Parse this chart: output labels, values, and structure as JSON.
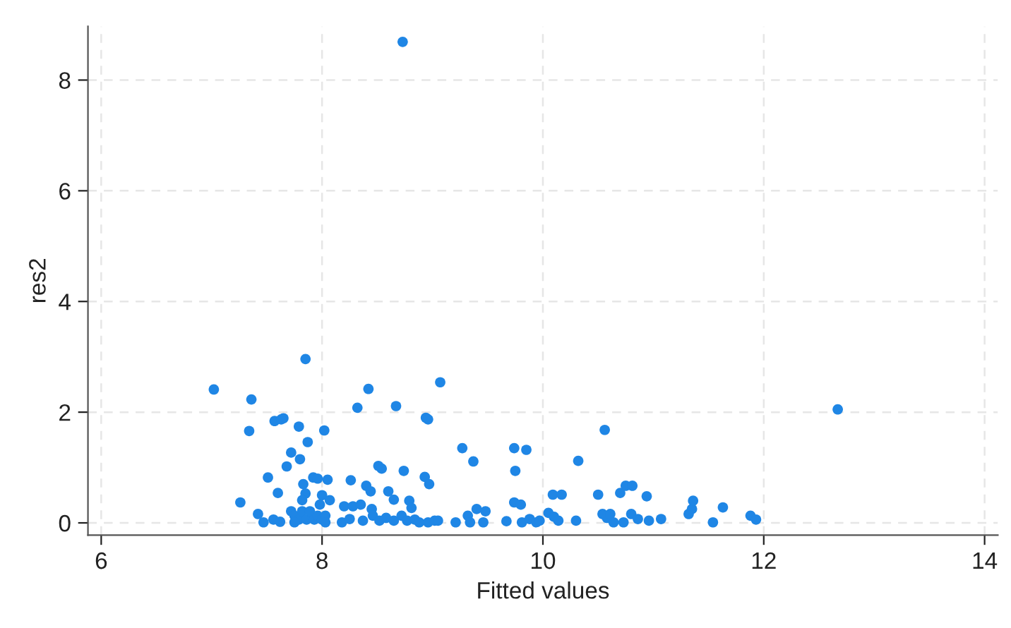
{
  "chart_data": {
    "type": "scatter",
    "xlabel": "Fitted values",
    "ylabel": "res2",
    "color": "#1f86e5",
    "marker": "circle",
    "grid": true,
    "xlim": [
      5.88,
      14.12
    ],
    "ylim": [
      -0.22,
      8.97
    ],
    "xticks": [
      6,
      8,
      10,
      12,
      14
    ],
    "yticks": [
      0,
      2,
      4,
      6,
      8
    ],
    "x": [
      8.73,
      7.02,
      7.36,
      7.85,
      7.34,
      7.26,
      7.42,
      7.47,
      7.51,
      7.56,
      7.6,
      7.57,
      7.65,
      7.63,
      7.62,
      7.68,
      7.72,
      7.79,
      7.8,
      7.87,
      7.83,
      7.85,
      7.82,
      7.92,
      7.96,
      8.05,
      8.02,
      8.0,
      7.98,
      8.07,
      7.72,
      7.75,
      7.79,
      7.82,
      7.86,
      7.89,
      7.93,
      7.96,
      8.0,
      8.03,
      8.03,
      7.75,
      8.26,
      8.32,
      8.42,
      8.4,
      8.44,
      8.2,
      8.28,
      8.35,
      8.45,
      8.51,
      8.54,
      8.6,
      8.65,
      8.67,
      8.74,
      8.79,
      8.81,
      8.93,
      8.97,
      8.94,
      8.96,
      9.07,
      9.27,
      9.37,
      9.32,
      9.4,
      9.48,
      9.34,
      9.46,
      8.18,
      8.25,
      8.37,
      8.46,
      8.52,
      8.58,
      8.65,
      8.72,
      8.77,
      8.84,
      8.88,
      8.96,
      9.02,
      9.05,
      9.21,
      9.74,
      9.85,
      9.75,
      9.74,
      9.8,
      9.67,
      9.81,
      9.88,
      9.94,
      9.97,
      10.05,
      10.1,
      10.14,
      10.09,
      10.17,
      10.3,
      10.32,
      10.56,
      10.5,
      10.54,
      10.58,
      10.61,
      10.64,
      10.7,
      10.75,
      10.81,
      10.73,
      10.8,
      10.86,
      10.94,
      10.96,
      11.07,
      11.32,
      11.35,
      11.36,
      11.54,
      11.63,
      11.88,
      11.93,
      12.67
    ],
    "values": [
      8.69,
      2.41,
      2.23,
      2.96,
      1.66,
      0.37,
      0.16,
      0.01,
      0.82,
      0.06,
      0.54,
      1.84,
      1.89,
      1.87,
      0.02,
      1.02,
      1.27,
      1.74,
      1.15,
      1.46,
      0.7,
      0.53,
      0.41,
      0.82,
      0.8,
      0.78,
      1.67,
      0.5,
      0.33,
      0.41,
      0.21,
      0.13,
      0.06,
      0.21,
      0.06,
      0.21,
      0.06,
      0.13,
      0.06,
      0.13,
      0.01,
      0.01,
      0.77,
      2.08,
      2.42,
      0.67,
      0.57,
      0.3,
      0.3,
      0.33,
      0.25,
      1.03,
      0.98,
      0.57,
      0.42,
      2.11,
      0.94,
      0.4,
      0.27,
      0.83,
      0.7,
      1.9,
      1.87,
      2.54,
      1.35,
      1.11,
      0.13,
      0.25,
      0.21,
      0.01,
      0.01,
      0.01,
      0.07,
      0.04,
      0.13,
      0.04,
      0.09,
      0.04,
      0.13,
      0.04,
      0.06,
      0.01,
      0.01,
      0.04,
      0.04,
      0.01,
      1.35,
      1.32,
      0.94,
      0.37,
      0.33,
      0.03,
      0.01,
      0.07,
      0.01,
      0.04,
      0.18,
      0.11,
      0.04,
      0.51,
      0.51,
      0.04,
      1.12,
      1.68,
      0.51,
      0.16,
      0.09,
      0.16,
      0.01,
      0.54,
      0.67,
      0.67,
      0.01,
      0.16,
      0.07,
      0.48,
      0.04,
      0.07,
      0.16,
      0.25,
      0.4,
      0.01,
      0.28,
      0.13,
      0.06,
      2.05
    ]
  }
}
